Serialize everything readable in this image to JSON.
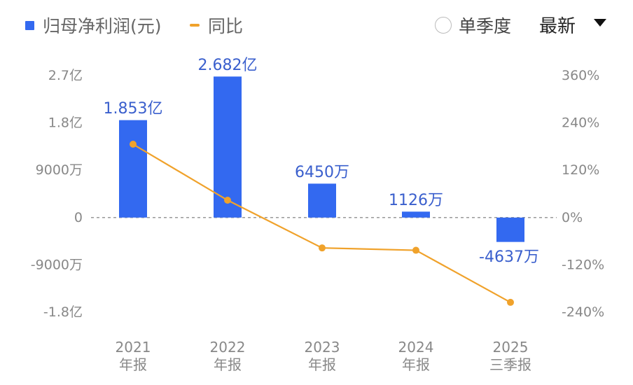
{
  "legend": {
    "bar_label": "归母净利润(元)",
    "line_label": "同比"
  },
  "controls": {
    "quarter_toggle": "单季度",
    "sort_dropdown": "最新"
  },
  "colors": {
    "bar": "#3369F0",
    "line": "#F0A22B",
    "zero_line": "#999999",
    "tick_text": "#888888",
    "bar_label": "#3A5FCD"
  },
  "chart_data": {
    "type": "bar",
    "categories": [
      [
        "2021",
        "年报"
      ],
      [
        "2022",
        "年报"
      ],
      [
        "2023",
        "年报"
      ],
      [
        "2024",
        "年报"
      ],
      [
        "2025",
        "三季报"
      ]
    ],
    "series": [
      {
        "name": "归母净利润(元)",
        "type": "bar",
        "axis": "left",
        "values": [
          185300000,
          268200000,
          64500000,
          11260000,
          -46370000
        ],
        "labels": [
          "1.853亿",
          "2.682亿",
          "6450万",
          "1126万",
          "-4637万"
        ]
      },
      {
        "name": "同比",
        "type": "line",
        "axis": "right",
        "values": [
          186,
          44,
          -77,
          -83,
          -215
        ]
      }
    ],
    "left_axis": {
      "ylim": [
        -180000000,
        270000000
      ],
      "ticks": [
        270000000,
        180000000,
        90000000,
        0,
        -90000000,
        -180000000
      ],
      "tick_labels": [
        "2.7亿",
        "1.8亿",
        "9000万",
        "0",
        "-9000万",
        "-1.8亿"
      ]
    },
    "right_axis": {
      "ylim": [
        -240,
        360
      ],
      "ticks": [
        360,
        240,
        120,
        0,
        -120,
        -240
      ],
      "tick_labels": [
        "360%",
        "240%",
        "120%",
        "0%",
        "-120%",
        "-240%"
      ]
    },
    "grid": false
  }
}
